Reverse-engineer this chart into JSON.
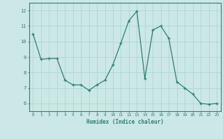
{
  "x": [
    0,
    1,
    2,
    3,
    4,
    5,
    6,
    7,
    8,
    9,
    10,
    11,
    12,
    13,
    14,
    15,
    16,
    17,
    18,
    19,
    20,
    21,
    22,
    23
  ],
  "y": [
    10.5,
    8.85,
    8.9,
    8.9,
    7.5,
    7.2,
    7.2,
    6.85,
    7.2,
    7.5,
    8.5,
    9.9,
    11.35,
    11.95,
    7.6,
    10.75,
    11.0,
    10.2,
    7.4,
    7.0,
    6.6,
    6.0,
    5.95,
    6.0
  ],
  "xlabel": "Humidex (Indice chaleur)",
  "xlim": [
    -0.5,
    23.5
  ],
  "ylim": [
    5.5,
    12.5
  ],
  "yticks": [
    6,
    7,
    8,
    9,
    10,
    11,
    12
  ],
  "xticks": [
    0,
    1,
    2,
    3,
    4,
    5,
    6,
    7,
    8,
    9,
    10,
    11,
    12,
    13,
    14,
    15,
    16,
    17,
    18,
    19,
    20,
    21,
    22,
    23
  ],
  "line_color": "#2e7d6e",
  "marker": "+",
  "bg_color": "#cce8e6",
  "grid_color": "#b0d8d6",
  "axis_color": "#2e7d6e",
  "tick_color": "#2e7d6e",
  "label_color": "#2e7d6e"
}
